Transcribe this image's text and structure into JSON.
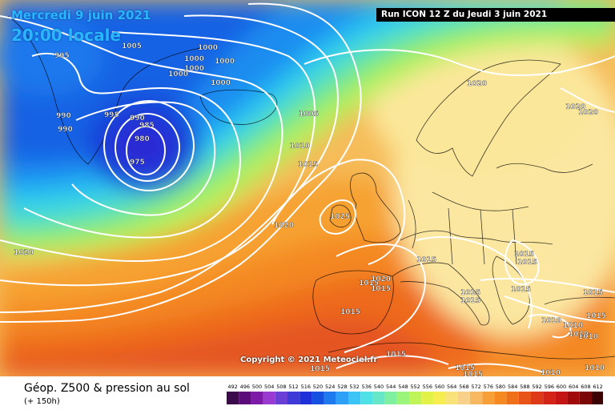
{
  "header": {
    "valid_date": "Mercredi 9 juin 2021",
    "valid_time": "20:00 locale",
    "run_info": "Run ICON 12 Z du Jeudi 3 juin 2021"
  },
  "map": {
    "copyright": "Copyright © 2021 Meteociel.fr",
    "isobar_labels": [
      "995",
      "1005",
      "1000",
      "1000",
      "1000",
      "1000",
      "1000",
      "1000",
      "990",
      "990",
      "995",
      "990",
      "985",
      "980",
      "975",
      "1005",
      "1010",
      "1015",
      "1020",
      "1025",
      "1020",
      "1015",
      "1015",
      "1015",
      "1020",
      "1015",
      "1015",
      "1015",
      "1015",
      "1015",
      "1015",
      "1010",
      "1015",
      "1010",
      "1010",
      "1010",
      "1015",
      "1020",
      "1020",
      "1020",
      "1010",
      "1015",
      "1015",
      "1010",
      "1015",
      "1015"
    ]
  },
  "legend": {
    "title": "Géop. Z500 & pression au sol",
    "forecast_hour": "(+ 150h)",
    "scale_values": [
      "492",
      "496",
      "500",
      "504",
      "508",
      "512",
      "516",
      "520",
      "524",
      "528",
      "532",
      "536",
      "540",
      "544",
      "548",
      "552",
      "556",
      "560",
      "564",
      "568",
      "572",
      "576",
      "580",
      "584",
      "588",
      "592",
      "596",
      "600",
      "604",
      "608",
      "612"
    ],
    "scale_colors": [
      "#3b0a4a",
      "#5b0a7a",
      "#7e1aa8",
      "#9b3ad0",
      "#6a3fd6",
      "#3d3ad8",
      "#2030d8",
      "#1550e0",
      "#1f7af0",
      "#2fa0f7",
      "#3cc4f7",
      "#4fe0e8",
      "#66e8c8",
      "#7ef0a0",
      "#9af57a",
      "#c0f55a",
      "#e2f246",
      "#f6ee50",
      "#fae27a",
      "#f8d08a",
      "#f6b860",
      "#f7a03a",
      "#f58a22",
      "#f0701a",
      "#e85418",
      "#de3a18",
      "#d42418",
      "#c41414",
      "#a00a0a",
      "#7a0606",
      "#3a0202"
    ]
  }
}
